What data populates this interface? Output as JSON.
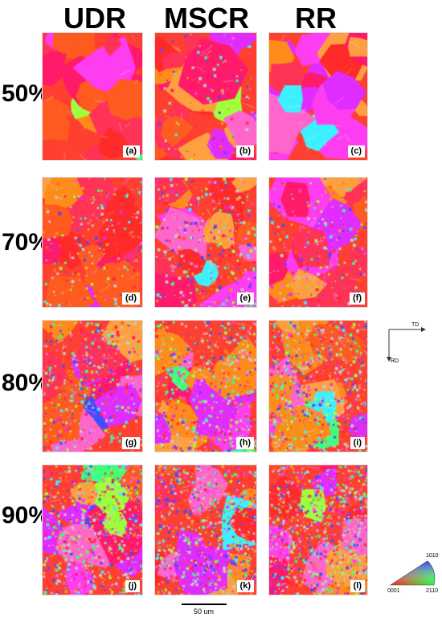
{
  "columns": [
    "UDR",
    "MSCR",
    "RR"
  ],
  "rows": [
    "50%",
    "70%",
    "80%",
    "90%"
  ],
  "panels": [
    [
      "(a)",
      "(b)",
      "(c)"
    ],
    [
      "(d)",
      "(e)",
      "(f)"
    ],
    [
      "(g)",
      "(h)",
      "(i)"
    ],
    [
      "(j)",
      "(k)",
      "(l)"
    ]
  ],
  "axes": {
    "td": "TD",
    "rd": "RD"
  },
  "scale_bar": {
    "label": "50 um"
  },
  "legend": {
    "top": "1010",
    "left": "0001",
    "right": "2110"
  },
  "colors": {
    "red": "#ff2a2a",
    "orange": "#ff8c1a",
    "magenta": "#ff3df0",
    "blue": "#3d4dff",
    "green": "#3dff7a"
  }
}
